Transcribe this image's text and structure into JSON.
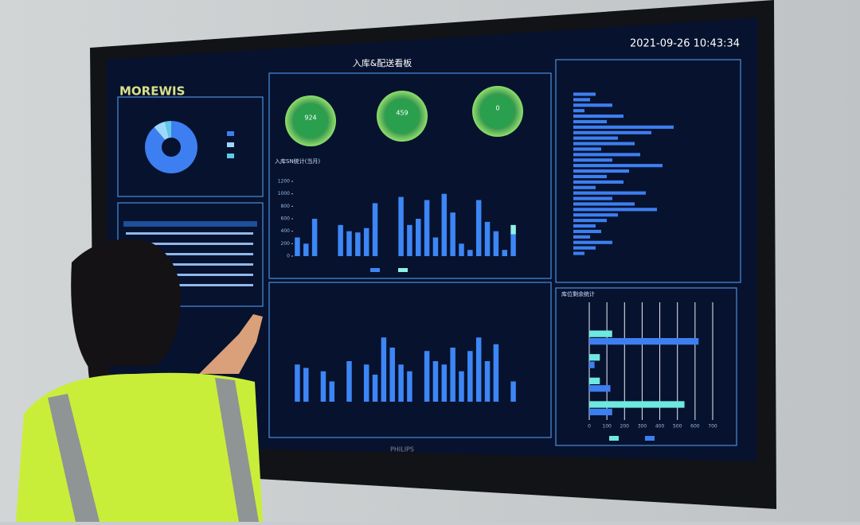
{
  "header": {
    "title": "入库&配送看板",
    "datetime": "2021-09-26 10:43:34",
    "logo": "MOREWIS"
  },
  "brand": "PHILIPS",
  "pie": {
    "values": [
      88.8,
      7.4,
      3.8
    ],
    "colors": [
      "#3d7ff0",
      "#9fd8ff",
      "#5fc9e8"
    ]
  },
  "gauges": [
    {
      "value": 924
    },
    {
      "value": 459
    },
    {
      "value": 0
    }
  ],
  "inbound_chart": {
    "title": "入库SN统计(当月)",
    "ylim": [
      0,
      1200
    ],
    "yticks": [
      0,
      200,
      400,
      600,
      800,
      1000,
      1200
    ],
    "series": [
      {
        "color": "#3d86f5",
        "values": [
          300,
          200,
          600,
          0,
          0,
          500,
          400,
          380,
          450,
          850,
          0,
          0,
          950,
          500,
          600,
          900,
          300,
          1000,
          700,
          200,
          100,
          900,
          550,
          400,
          100,
          350
        ]
      },
      {
        "color": "#8ff0e6",
        "values": [
          0,
          0,
          0,
          0,
          0,
          0,
          0,
          0,
          0,
          0,
          0,
          0,
          0,
          0,
          0,
          0,
          0,
          0,
          0,
          0,
          0,
          0,
          0,
          0,
          0,
          150
        ]
      }
    ]
  },
  "delivery_chart": {
    "ylim": [
      0,
      100
    ],
    "values": [
      55,
      50,
      0,
      45,
      30,
      0,
      60,
      0,
      55,
      40,
      95,
      80,
      55,
      45,
      0,
      75,
      60,
      55,
      80,
      45,
      75,
      95,
      60,
      85,
      0,
      30
    ]
  },
  "right_chart": {
    "xlim": [
      0,
      100
    ],
    "values": [
      20,
      15,
      35,
      10,
      45,
      30,
      90,
      70,
      40,
      55,
      25,
      60,
      35,
      80,
      50,
      30,
      45,
      20,
      65,
      35,
      55,
      75,
      40,
      30,
      20,
      25,
      15,
      35,
      20,
      10
    ]
  },
  "slot_chart": {
    "title": "库位剩余统计",
    "xlim": [
      0,
      700
    ],
    "xticks": [
      0,
      100,
      200,
      300,
      400,
      500,
      600,
      700
    ],
    "series": [
      {
        "color": "#6ee8e0",
        "values": [
          0,
          130,
          60,
          60,
          540
        ]
      },
      {
        "color": "#3d7ff0",
        "values": [
          0,
          620,
          30,
          120,
          130
        ]
      }
    ]
  }
}
